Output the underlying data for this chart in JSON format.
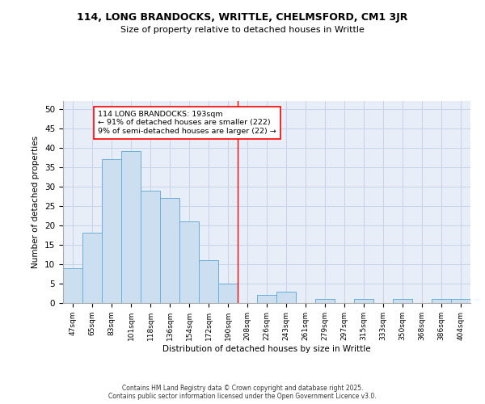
{
  "title1": "114, LONG BRANDOCKS, WRITTLE, CHELMSFORD, CM1 3JR",
  "title2": "Size of property relative to detached houses in Writtle",
  "xlabel": "Distribution of detached houses by size in Writtle",
  "ylabel": "Number of detached properties",
  "categories": [
    "47sqm",
    "65sqm",
    "83sqm",
    "101sqm",
    "118sqm",
    "136sqm",
    "154sqm",
    "172sqm",
    "190sqm",
    "208sqm",
    "226sqm",
    "243sqm",
    "261sqm",
    "279sqm",
    "297sqm",
    "315sqm",
    "333sqm",
    "350sqm",
    "368sqm",
    "386sqm",
    "404sqm"
  ],
  "values": [
    9,
    18,
    37,
    39,
    29,
    27,
    21,
    11,
    5,
    0,
    2,
    3,
    0,
    1,
    0,
    1,
    0,
    1,
    0,
    1,
    1
  ],
  "bar_color": "#ccdff0",
  "bar_edge_color": "#6aaed6",
  "grid_color": "#c8d4e8",
  "background_color": "#e8eef8",
  "annotation_text_line1": "114 LONG BRANDOCKS: 193sqm",
  "annotation_text_line2": "← 91% of detached houses are smaller (222)",
  "annotation_text_line3": "9% of semi-detached houses are larger (22) →",
  "red_line_x": 8.5,
  "footer_text": "Contains HM Land Registry data © Crown copyright and database right 2025.\nContains public sector information licensed under the Open Government Licence v3.0.",
  "ylim": [
    0,
    52
  ],
  "yticks": [
    0,
    5,
    10,
    15,
    20,
    25,
    30,
    35,
    40,
    45,
    50
  ],
  "fig_width": 6.0,
  "fig_height": 5.0,
  "dpi": 100
}
